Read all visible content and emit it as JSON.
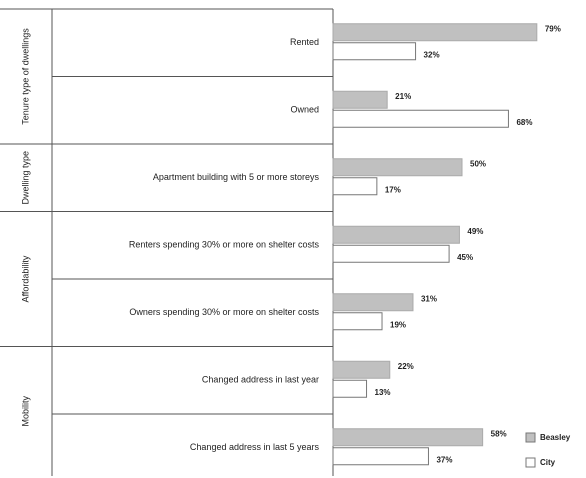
{
  "chart_data": {
    "type": "bar",
    "orientation": "horizontal",
    "groups": [
      {
        "name": "Tenure type of dwellings",
        "categories": [
          "Rented",
          "Owned"
        ]
      },
      {
        "name": "Dwelling type",
        "categories": [
          "Apartment building with 5 or more storeys"
        ]
      },
      {
        "name": "Affordability",
        "categories": [
          "Renters spending 30% or more on shelter costs",
          "Owners spending 30% or more on shelter costs"
        ]
      },
      {
        "name": "Mobility",
        "categories": [
          "Changed address in last year",
          "Changed address in last 5 years"
        ]
      }
    ],
    "series": [
      {
        "name": "Beasley",
        "color": "#c0c0c0",
        "values": [
          79,
          21,
          50,
          49,
          31,
          22,
          58
        ],
        "value_labels": [
          "79%",
          "21%",
          "50%",
          "49%",
          "31%",
          "22%",
          "58%"
        ]
      },
      {
        "name": "City",
        "color": "#ffffff",
        "values": [
          32,
          68,
          17,
          45,
          19,
          13,
          37
        ],
        "value_labels": [
          "32%",
          "68%",
          "17%",
          "45%",
          "19%",
          "13%",
          "37%"
        ]
      }
    ],
    "legend": "bottom-right"
  }
}
